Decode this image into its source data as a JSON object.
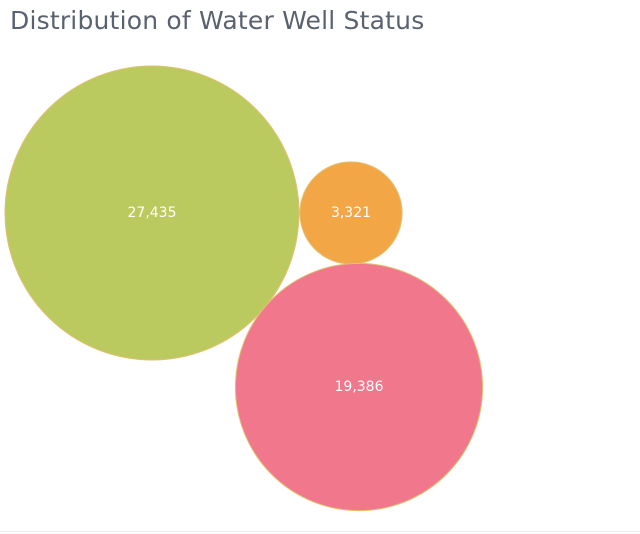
{
  "chart_data": {
    "type": "bubble",
    "title": "Distribution of Water Well Status",
    "bubbles": [
      {
        "value": 27435,
        "label": "27,435",
        "color": "#bbca5e"
      },
      {
        "value": 3321,
        "label": "3,321",
        "color": "#f2a646"
      },
      {
        "value": 19386,
        "label": "19,386",
        "color": "#f1788c"
      }
    ],
    "legend": false,
    "grid": false
  }
}
